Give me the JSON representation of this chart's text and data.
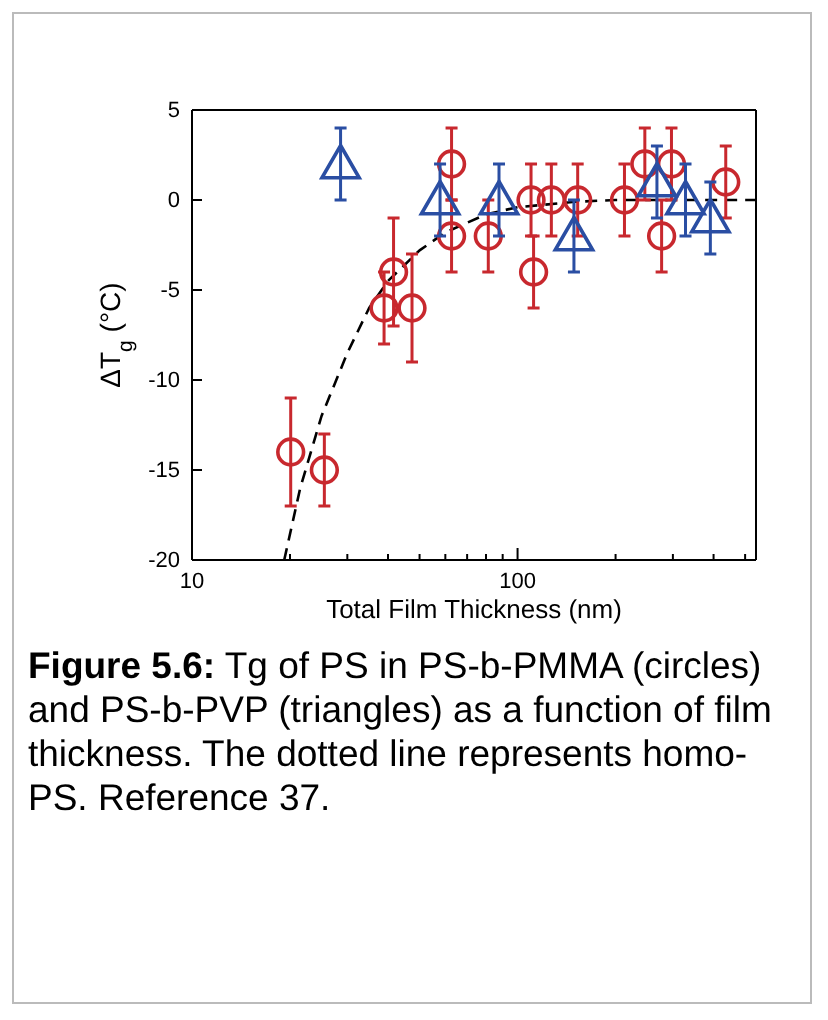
{
  "chart_data": {
    "type": "scatter",
    "xlabel": "Total Film Thickness  (nm)",
    "ylabel": "ΔT$_{g}$  (°C)",
    "log": "x",
    "xlim": [
      10,
      540
    ],
    "ylim": [
      -20,
      5
    ],
    "xticks": [
      10,
      {
        "value": 20,
        "label": null
      },
      {
        "value": 30,
        "label": null
      },
      {
        "value": 40,
        "label": null
      },
      {
        "value": 50,
        "label": null
      },
      {
        "value": 60,
        "label": null
      },
      {
        "value": 70,
        "label": null
      },
      {
        "value": 80,
        "label": null
      },
      {
        "value": 90,
        "label": null
      },
      100,
      {
        "value": 200,
        "label": null
      },
      {
        "value": 300,
        "label": null
      },
      {
        "value": 400,
        "label": null
      },
      {
        "value": 500,
        "label": null
      }
    ],
    "yticks": [
      -20,
      -15,
      -10,
      -5,
      0,
      5
    ],
    "grid": false,
    "series": [
      {
        "type": "scatter",
        "marker": "circle",
        "color": "#c8282e",
        "x": [
          20.1,
          25.5,
          38.9,
          41.6,
          47.4,
          62.7,
          62.7,
          81.3,
          110,
          112,
          127,
          153,
          213,
          246,
          277,
          297,
          436
        ],
        "values": [
          -14,
          -15,
          -6,
          -4,
          -6,
          2,
          -2,
          -2,
          0,
          -4,
          0,
          0,
          0,
          2,
          -2,
          2,
          1
        ],
        "errors": [
          [
            -17,
            -11
          ],
          2,
          2,
          [
            -7,
            -1
          ],
          [
            -9,
            -3
          ],
          2,
          2,
          2,
          2,
          2,
          2,
          2,
          2,
          2,
          2,
          2,
          2
        ]
      },
      {
        "type": "scatter",
        "marker": "triangle",
        "color": "#2a4ea3",
        "x": [
          28.6,
          57.8,
          87.7,
          149,
          268,
          328,
          391
        ],
        "values": [
          2,
          0,
          0,
          -2,
          1,
          0,
          -1
        ],
        "errors": [
          2,
          2,
          2,
          2,
          2,
          2,
          2
        ]
      },
      {
        "type": "line",
        "marker": "none",
        "line_style": "dashed",
        "color": "#000000",
        "x": [
          19.2,
          21.5,
          25,
          30,
          35,
          40,
          50,
          60,
          80,
          100,
          150,
          200,
          540
        ],
        "values": [
          -20,
          -16,
          -12,
          -8.5,
          -6,
          -4.5,
          -2.8,
          -1.8,
          -0.8,
          -0.4,
          -0.1,
          0,
          0
        ]
      }
    ],
    "annotations": [
      "Figure 5.6:",
      "Tg of PS in PS-b-PMMA (circles) and PS-b-PVP (triangles) as a function of film thickness. The dotted line represents homo-PS. Reference 37."
    ]
  }
}
